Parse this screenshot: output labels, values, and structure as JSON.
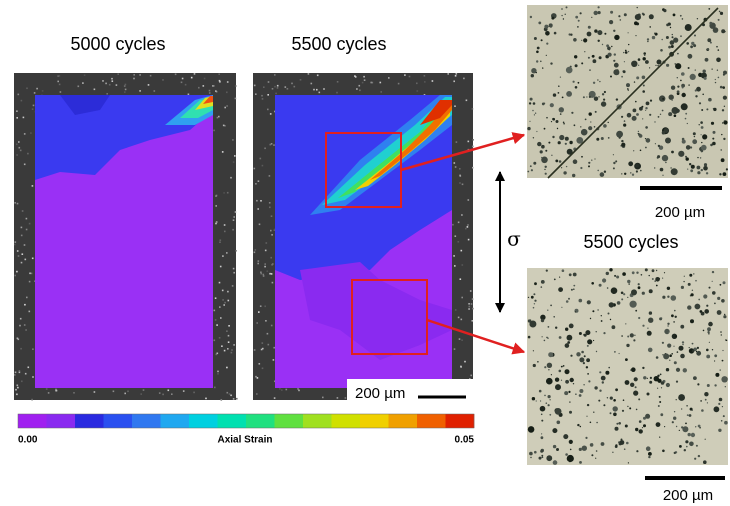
{
  "panels": {
    "left_title": "5000 cycles",
    "middle_title": "5500 cycles",
    "middle_scale": "200 µm"
  },
  "micrographs": {
    "top_scale": "200 µm",
    "label": "5500 cycles",
    "bottom_scale": "200 µm",
    "stress": "σ"
  },
  "colorbar": {
    "min_label": "0.00",
    "title": "Axial Strain",
    "max_label": "0.05"
  }
}
